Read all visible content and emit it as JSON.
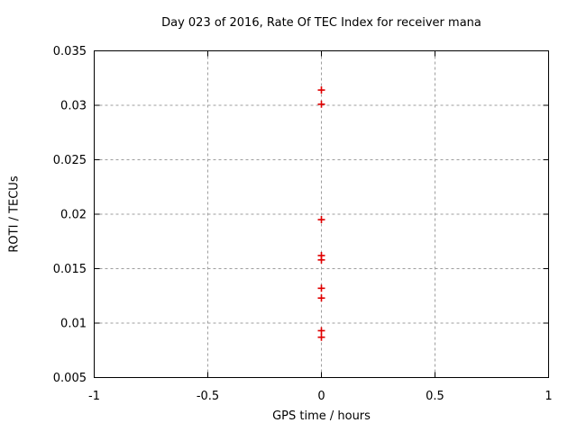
{
  "chart_data": {
    "type": "scatter",
    "title": "Day 023 of 2016, Rate Of TEC Index for receiver mana",
    "xlabel": "GPS time / hours",
    "ylabel": "ROTI / TECUs",
    "xlim": [
      -1,
      1
    ],
    "ylim": [
      0.005,
      0.035
    ],
    "xticks": [
      -1,
      -0.5,
      0,
      0.5,
      1
    ],
    "xtick_labels": [
      "-1",
      "-0.5",
      "0",
      "0.5",
      "1"
    ],
    "yticks": [
      0.005,
      0.01,
      0.015,
      0.02,
      0.025,
      0.03,
      0.035
    ],
    "ytick_labels": [
      "0.005",
      "0.01",
      "0.015",
      "0.02",
      "0.025",
      "0.03",
      "0.035"
    ],
    "grid": true,
    "grid_style": "dashed",
    "legend": "none",
    "series": [
      {
        "name": "ROTI",
        "marker": "plus",
        "color": "#e00000",
        "points": [
          [
            0,
            0.0314
          ],
          [
            0,
            0.0301
          ],
          [
            0,
            0.0195
          ],
          [
            0,
            0.0162
          ],
          [
            0,
            0.0158
          ],
          [
            0,
            0.0132
          ],
          [
            0,
            0.0123
          ],
          [
            0,
            0.0093
          ],
          [
            0,
            0.0087
          ]
        ]
      }
    ],
    "colors": {
      "background": "#ffffff",
      "border": "#000000",
      "grid": "#9e9e9e",
      "text": "#000000"
    }
  }
}
